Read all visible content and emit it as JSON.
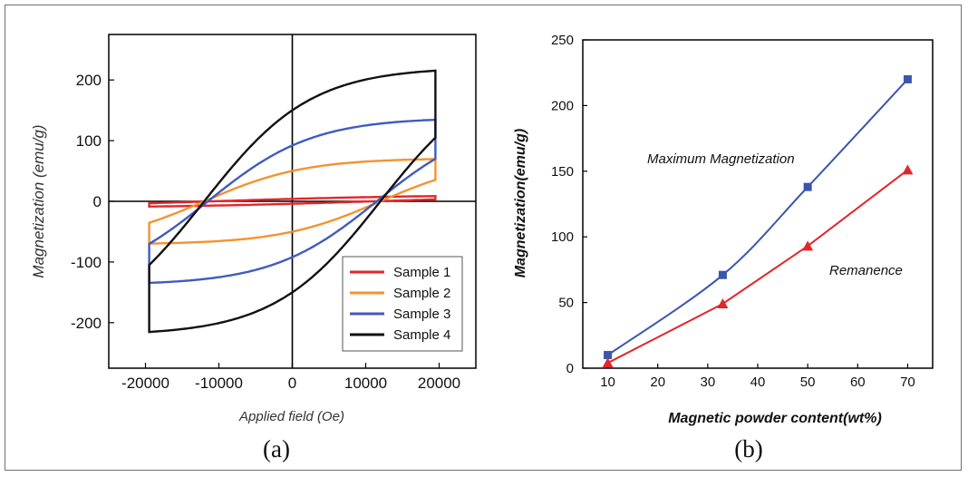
{
  "chart_data": [
    {
      "type": "line",
      "panel_label": "(a)",
      "xlabel": "Applied field (Oe)",
      "ylabel": "Magnetization (emu/g)",
      "xlim": [
        -25000,
        25000
      ],
      "ylim": [
        -275,
        275
      ],
      "xticks": [
        -20000,
        -10000,
        0,
        10000,
        20000
      ],
      "xtick_labels": [
        "-20000",
        "-10000",
        "0",
        "10000",
        "20000"
      ],
      "yticks": [
        -200,
        -100,
        0,
        100,
        200
      ],
      "ytick_labels": [
        "-200",
        "-100",
        "0",
        "100",
        "200"
      ],
      "legend_position": "bottom-right",
      "series": [
        {
          "name": "Sample 1",
          "color": "#e3262a",
          "saturation": 11,
          "remanence": 4,
          "coercivity": 11000,
          "h_max": 19500
        },
        {
          "name": "Sample 2",
          "color": "#f5922f",
          "saturation": 71,
          "remanence": 50,
          "coercivity": 12000,
          "h_max": 19500
        },
        {
          "name": "Sample 3",
          "color": "#3f5bbf",
          "saturation": 138,
          "remanence": 92,
          "coercivity": 11500,
          "h_max": 19500
        },
        {
          "name": "Sample 4",
          "color": "#111111",
          "saturation": 221,
          "remanence": 150,
          "coercivity": 12000,
          "h_max": 19500
        }
      ]
    },
    {
      "type": "line",
      "panel_label": "(b)",
      "xlabel": "Magnetic powder content(wt%)",
      "ylabel": "Magnetization(emu/g)",
      "xlim": [
        5,
        75
      ],
      "ylim": [
        0,
        250
      ],
      "xticks": [
        10,
        20,
        30,
        40,
        50,
        60,
        70
      ],
      "xtick_labels": [
        "10",
        "20",
        "30",
        "40",
        "50",
        "60",
        "70"
      ],
      "yticks": [
        0,
        50,
        100,
        150,
        200,
        250
      ],
      "ytick_labels": [
        "0",
        "50",
        "100",
        "150",
        "200",
        "250"
      ],
      "series": [
        {
          "name": "Maximum Magnetization",
          "color": "#3a56ad",
          "marker": "square",
          "x": [
            10,
            33,
            50,
            70
          ],
          "y": [
            10,
            71,
            138,
            220
          ]
        },
        {
          "name": "Remanence",
          "color": "#e3262a",
          "marker": "triangle",
          "x": [
            10,
            33,
            50,
            70
          ],
          "y": [
            4,
            49,
            93,
            151
          ]
        }
      ]
    }
  ]
}
